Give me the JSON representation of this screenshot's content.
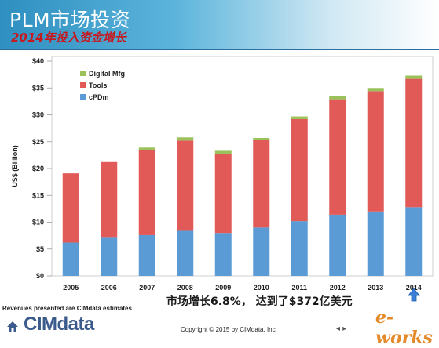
{
  "header": {
    "title": "PLM市场投资",
    "subtitle": "2014年投入资金增长"
  },
  "chart_data": {
    "type": "bar",
    "stacked": true,
    "categories": [
      "2005",
      "2006",
      "2007",
      "2008",
      "2009",
      "2010",
      "2011",
      "2012",
      "2013",
      "2014"
    ],
    "series": [
      {
        "name": "cPDm",
        "color": "#5b9bd5",
        "values": [
          6.2,
          7.1,
          7.6,
          8.4,
          8.0,
          9.0,
          10.2,
          11.4,
          12.0,
          12.8
        ]
      },
      {
        "name": "Tools",
        "color": "#e15a57",
        "values": [
          12.9,
          14.1,
          15.8,
          16.8,
          14.7,
          16.3,
          19.0,
          21.5,
          22.4,
          23.9
        ]
      },
      {
        "name": "Digital Mfg",
        "color": "#9bc25a",
        "values": [
          0.0,
          0.0,
          0.5,
          0.6,
          0.6,
          0.4,
          0.5,
          0.6,
          0.6,
          0.6
        ]
      }
    ],
    "ylabel": "US$ (Billion)",
    "ylim": [
      0,
      40
    ],
    "yticks": [
      "$0",
      "$5",
      "$10",
      "$15",
      "$20",
      "$25",
      "$30",
      "$35",
      "$40"
    ],
    "legend_position": "top-left",
    "grid": false
  },
  "annotation": "市场增长6.8%， 达到了$372亿美元",
  "footer": {
    "note": "Revenues presented are CIMdata estimates",
    "logo": "CIMdata",
    "copyright": "Copyright © 2015 by CIMdata, Inc.",
    "nav": "◂ ▸",
    "watermark": "e-works"
  }
}
